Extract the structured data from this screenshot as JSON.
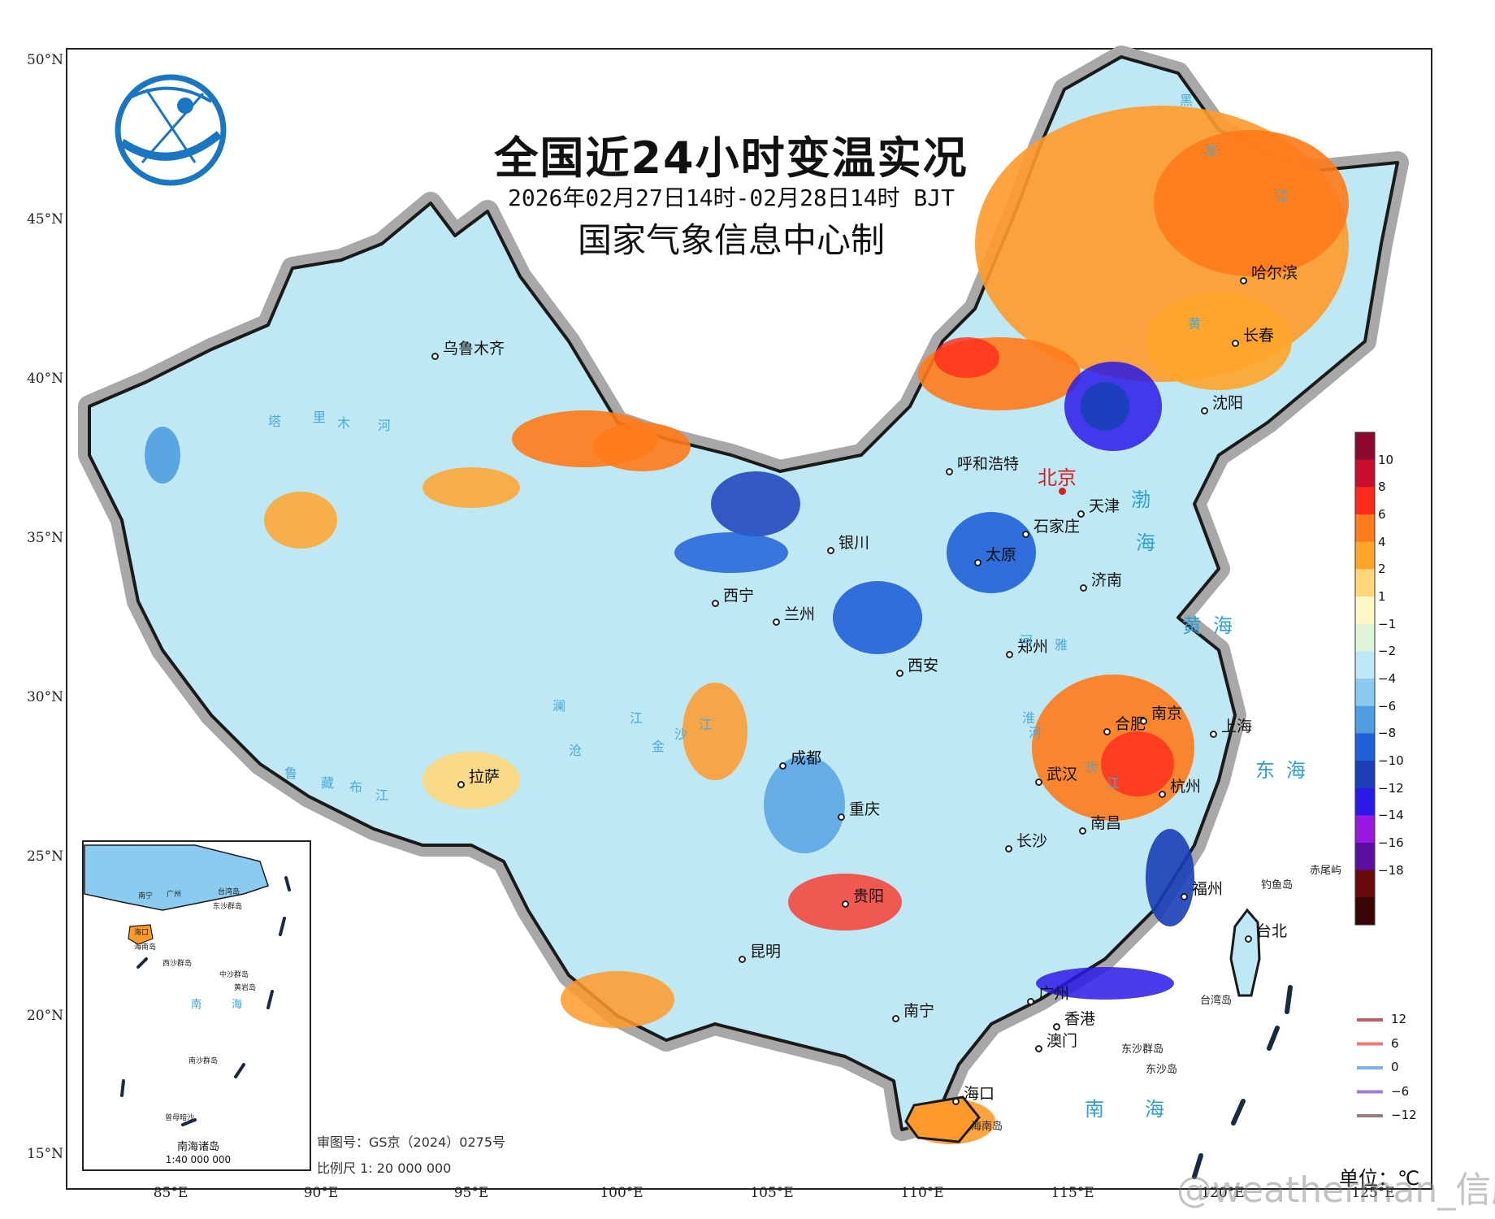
{
  "title": "全国近24小时变温实况",
  "subtitle": "2026年02月27日14时-02月28日14时 BJT",
  "producer": "国家气象信息中心制",
  "latitude_ticks": [
    "50°N",
    "45°N",
    "40°N",
    "35°N",
    "30°N",
    "25°N",
    "20°N",
    "15°N"
  ],
  "longitude_ticks": [
    "85°E",
    "90°E",
    "95°E",
    "100°E",
    "105°E",
    "110°E",
    "115°E",
    "120°E",
    "125°E"
  ],
  "cities": [
    {
      "name": "哈尔滨"
    },
    {
      "name": "长春"
    },
    {
      "name": "沈阳"
    },
    {
      "name": "乌鲁木齐"
    },
    {
      "name": "呼和浩特"
    },
    {
      "name": "北京"
    },
    {
      "name": "天津"
    },
    {
      "name": "石家庄"
    },
    {
      "name": "银川"
    },
    {
      "name": "太原"
    },
    {
      "name": "济南"
    },
    {
      "name": "西宁"
    },
    {
      "name": "兰州"
    },
    {
      "name": "西安"
    },
    {
      "name": "郑州"
    },
    {
      "name": "合肥"
    },
    {
      "name": "南京"
    },
    {
      "name": "上海"
    },
    {
      "name": "拉萨"
    },
    {
      "name": "成都"
    },
    {
      "name": "武汉"
    },
    {
      "name": "杭州"
    },
    {
      "name": "重庆"
    },
    {
      "name": "南昌"
    },
    {
      "name": "长沙"
    },
    {
      "name": "福州"
    },
    {
      "name": "贵阳"
    },
    {
      "name": "台北"
    },
    {
      "name": "昆明"
    },
    {
      "name": "广州"
    },
    {
      "name": "南宁"
    },
    {
      "name": "香港"
    },
    {
      "name": "澳门"
    },
    {
      "name": "海口"
    }
  ],
  "rivers": [
    "塔",
    "里",
    "木",
    "河",
    "黑",
    "龙",
    "江",
    "黄",
    "河",
    "雅",
    "鲁",
    "藏",
    "布",
    "江",
    "澜",
    "沧",
    "江",
    "金",
    "沙",
    "江",
    "淮",
    "河",
    "长",
    "江"
  ],
  "seas": [
    "渤",
    "海",
    "黄海",
    "东海",
    "南海"
  ],
  "islands": [
    "钓鱼岛",
    "赤尾屿",
    "台湾岛",
    "东沙群岛",
    "东沙岛",
    "海南岛"
  ],
  "inset": {
    "title": "南海诸岛",
    "scale": "1:40 000 000",
    "labels": [
      "南宁",
      "广州",
      "台湾岛",
      "东沙群岛",
      "海口",
      "海南岛",
      "西沙群岛",
      "中沙群岛",
      "黄岩岛",
      "南",
      "海",
      "南沙群岛",
      "曾母暗沙"
    ]
  },
  "approval_number": "审图号：GS京（2024）0275号",
  "map_scale": "比例尺 1: 20 000 000",
  "unit": "单位：℃",
  "watermark": "@weatherman_信欣",
  "colorbar": {
    "labels": [
      "10",
      "8",
      "6",
      "4",
      "2",
      "1",
      "−1",
      "−2",
      "−4",
      "−6",
      "−8",
      "−10",
      "−12",
      "−14",
      "−16",
      "−18"
    ],
    "colors": [
      "#8b0a2e",
      "#c8102e",
      "#ff2a1a",
      "#ff7a1a",
      "#ffa52a",
      "#ffd77a",
      "#fff6c8",
      "#dff5d8",
      "#bfe8f5",
      "#8ccbf0",
      "#4f9ee0",
      "#2060d8",
      "#1a3fb8",
      "#2a1ae8",
      "#9a18e0",
      "#5a0fa0",
      "#6a0a0a",
      "#3a0505"
    ]
  },
  "contour_legend": [
    {
      "label": "12",
      "color": "#c85b6a"
    },
    {
      "label": "6",
      "color": "#ee7b6f"
    },
    {
      "label": "0",
      "color": "#7fb0ef"
    },
    {
      "label": "−6",
      "color": "#a07ad8"
    },
    {
      "label": "−12",
      "color": "#9a7a7a"
    }
  ]
}
